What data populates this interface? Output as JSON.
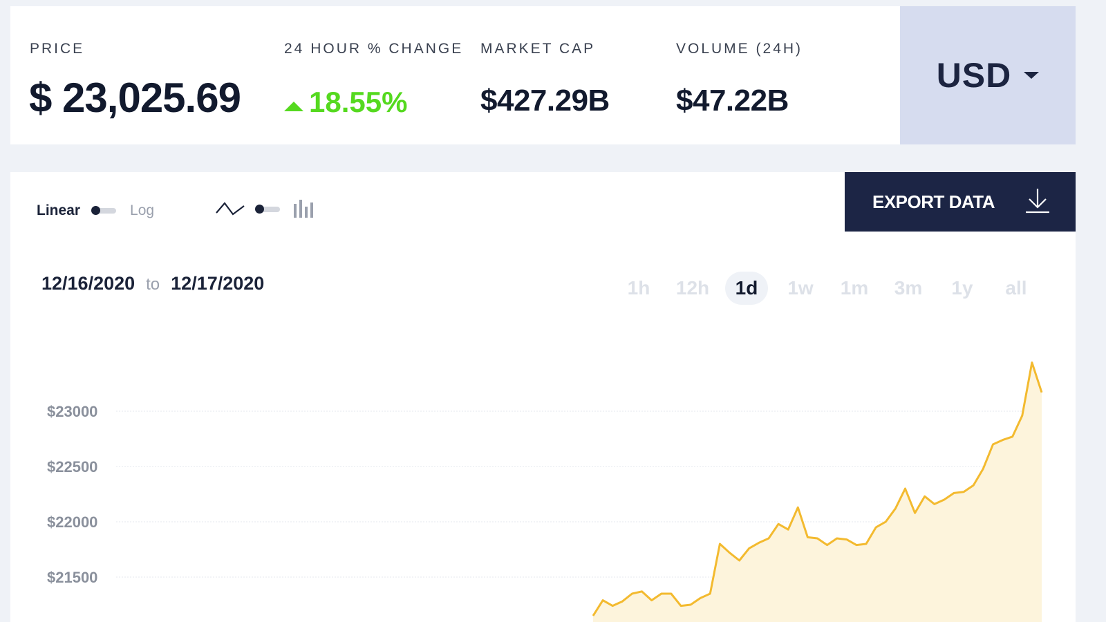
{
  "stats": {
    "price_label": "PRICE",
    "price_value": "$ 23,025.69",
    "change_label": "24 HOUR % CHANGE",
    "change_value": "18.55%",
    "market_cap_label": "MARKET CAP",
    "market_cap_value": "$427.29B",
    "volume_label": "VOLUME (24H)",
    "volume_value": "$47.22B",
    "change_color": "#55d91f"
  },
  "currency": {
    "label": "USD",
    "icon": "caret-down-icon"
  },
  "controls": {
    "scale_on": "Linear",
    "scale_off": "Log",
    "chart_type_on_icon": "line-chart-icon",
    "chart_type_off_icon": "bar-chart-icon"
  },
  "export": {
    "label": "EXPORT DATA",
    "icon": "download-icon"
  },
  "range": {
    "from": "12/16/2020",
    "to_word": "to",
    "to": "12/17/2020"
  },
  "periods": [
    {
      "label": "1h",
      "active": false
    },
    {
      "label": "12h",
      "active": false
    },
    {
      "label": "1d",
      "active": true
    },
    {
      "label": "1w",
      "active": false
    },
    {
      "label": "1m",
      "active": false
    },
    {
      "label": "3m",
      "active": false
    },
    {
      "label": "1y",
      "active": false
    },
    {
      "label": "all",
      "active": false
    }
  ],
  "chart_data": {
    "type": "area",
    "title": "",
    "xlabel": "",
    "ylabel": "",
    "y_ticks": [
      "$23000",
      "$22500",
      "$22000",
      "$21500"
    ],
    "y_tick_values": [
      23000,
      22500,
      22000,
      21500
    ],
    "ylim": [
      21200,
      23600
    ],
    "x_start": "12/16/2020",
    "x_end": "12/17/2020",
    "grid": true,
    "line_color": "#f3ba2f",
    "fill_color": "#fdf4dc",
    "series": [
      {
        "values": [
          21150,
          21290,
          21240,
          21280,
          21350,
          21370,
          21290,
          21350,
          21350,
          21240,
          21250,
          21310,
          21350,
          21800,
          21720,
          21650,
          21760,
          21810,
          21850,
          21980,
          21930,
          22130,
          21860,
          21850,
          21790,
          21850,
          21840,
          21790,
          21800,
          21950,
          22000,
          22120,
          22300,
          22080,
          22230,
          22160,
          22200,
          22260,
          22270,
          22330,
          22480,
          22700,
          22740,
          22770,
          22960,
          23440,
          23170
        ]
      }
    ]
  }
}
